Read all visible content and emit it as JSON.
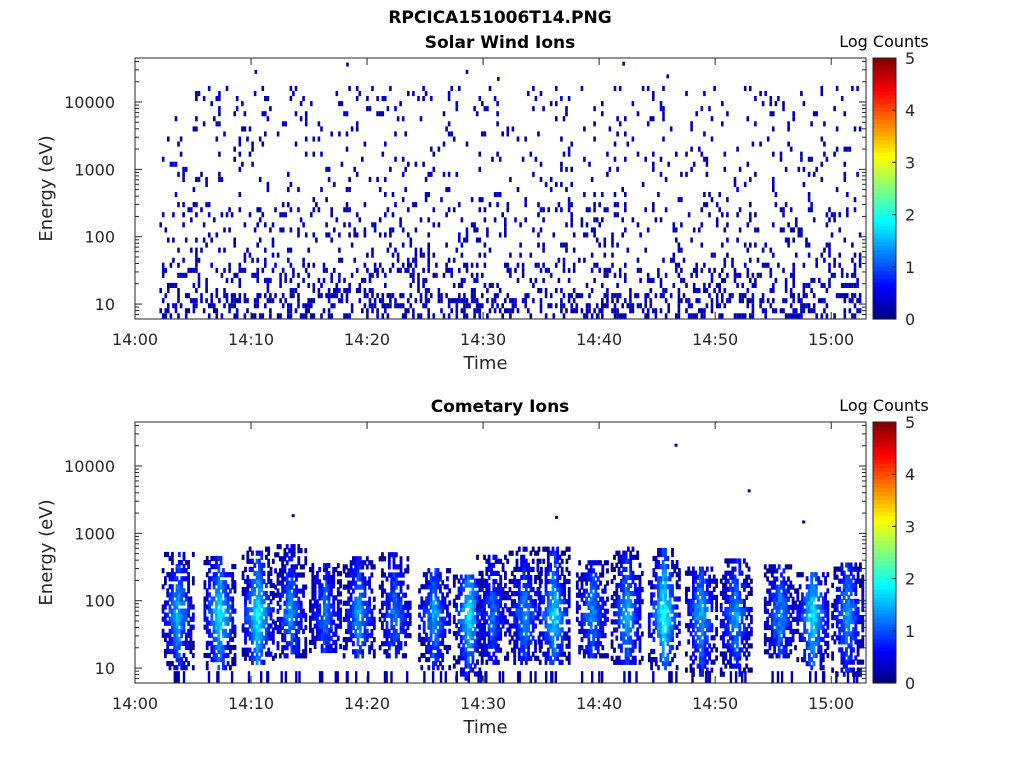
{
  "figure": {
    "title": "RPCICA151006T14.PNG"
  },
  "chart_data": [
    {
      "type": "heatmap",
      "title": "Solar Wind Ions",
      "xlabel": "Time",
      "ylabel": "Energy (eV)",
      "x_ticks": [
        "14:00",
        "14:10",
        "14:20",
        "14:30",
        "14:40",
        "14:50",
        "15:00"
      ],
      "xlim": [
        "14:00",
        "15:03"
      ],
      "y_scale": "log",
      "y_ticks": [
        "10",
        "100",
        "1000",
        "10000"
      ],
      "ylim": [
        6,
        45000
      ],
      "colorbar": {
        "label": "Log Counts",
        "ticks": [
          "0",
          "1",
          "2",
          "3",
          "4",
          "5"
        ],
        "range": [
          0,
          5
        ],
        "colormap": "jet"
      },
      "data_extent": {
        "time_start": "14:02",
        "time_end": "15:02"
      },
      "description_values": {
        "typical_log_counts": 0.1
      }
    },
    {
      "type": "heatmap",
      "title": "Cometary Ions",
      "xlabel": "Time",
      "ylabel": "Energy (eV)",
      "x_ticks": [
        "14:00",
        "14:10",
        "14:20",
        "14:30",
        "14:40",
        "14:50",
        "15:00"
      ],
      "xlim": [
        "14:00",
        "15:03"
      ],
      "y_scale": "log",
      "y_ticks": [
        "10",
        "100",
        "1000",
        "10000"
      ],
      "ylim": [
        6,
        45000
      ],
      "colorbar": {
        "label": "Log Counts",
        "ticks": [
          "0",
          "1",
          "2",
          "3",
          "4",
          "5"
        ],
        "range": [
          0,
          5
        ],
        "colormap": "jet"
      },
      "bursts": [
        {
          "t": 3.6,
          "e_lo": 10,
          "e_hi": 500,
          "peak": 1.6
        },
        {
          "t": 7.2,
          "e_lo": 10,
          "e_hi": 450,
          "peak": 1.9
        },
        {
          "t": 10.5,
          "e_lo": 12,
          "e_hi": 600,
          "peak": 2.0
        },
        {
          "t": 13.3,
          "e_lo": 15,
          "e_hi": 650,
          "peak": 1.4
        },
        {
          "t": 16.3,
          "e_lo": 18,
          "e_hi": 350,
          "peak": 1.3
        },
        {
          "t": 19.2,
          "e_lo": 15,
          "e_hi": 450,
          "peak": 1.5
        },
        {
          "t": 22.3,
          "e_lo": 15,
          "e_hi": 500,
          "peak": 1.3
        },
        {
          "t": 25.7,
          "e_lo": 10,
          "e_hi": 280,
          "peak": 1.5
        },
        {
          "t": 28.7,
          "e_lo": 7,
          "e_hi": 250,
          "peak": 1.9
        },
        {
          "t": 30.7,
          "e_lo": 12,
          "e_hi": 450,
          "peak": 1.2
        },
        {
          "t": 33.5,
          "e_lo": 12,
          "e_hi": 600,
          "peak": 1.4
        },
        {
          "t": 36.0,
          "e_lo": 12,
          "e_hi": 650,
          "peak": 1.8
        },
        {
          "t": 39.3,
          "e_lo": 15,
          "e_hi": 400,
          "peak": 1.4
        },
        {
          "t": 42.3,
          "e_lo": 12,
          "e_hi": 600,
          "peak": 1.6
        },
        {
          "t": 45.5,
          "e_lo": 10,
          "e_hi": 550,
          "peak": 2.1
        },
        {
          "t": 48.7,
          "e_lo": 8,
          "e_hi": 300,
          "peak": 1.6
        },
        {
          "t": 51.7,
          "e_lo": 8,
          "e_hi": 400,
          "peak": 1.5
        },
        {
          "t": 55.5,
          "e_lo": 15,
          "e_hi": 350,
          "peak": 1.4
        },
        {
          "t": 58.3,
          "e_lo": 10,
          "e_hi": 250,
          "peak": 1.9
        },
        {
          "t": 61.3,
          "e_lo": 8,
          "e_hi": 350,
          "peak": 1.5
        }
      ],
      "outliers": [
        {
          "t": 46.5,
          "e": 20000
        },
        {
          "t": 52.8,
          "e": 4200
        },
        {
          "t": 57.5,
          "e": 1450
        },
        {
          "t": 36.2,
          "e": 1700
        },
        {
          "t": 13.5,
          "e": 1800
        }
      ]
    }
  ]
}
